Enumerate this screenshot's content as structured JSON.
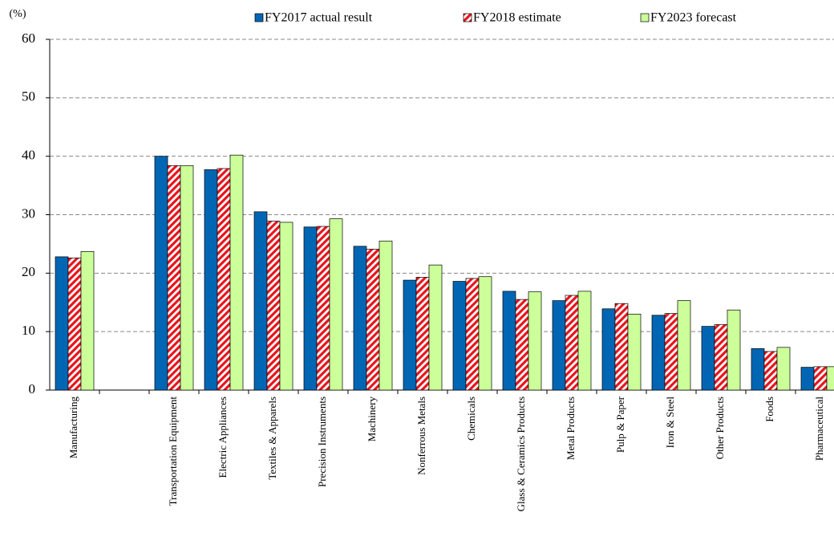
{
  "chart_data": {
    "type": "bar",
    "y_label": "(%)",
    "categories": [
      "Manufacturing",
      null,
      "Transportation Equipment",
      "Electric Appliances",
      "Textiles & Apparels",
      "Precision Instruments",
      "Machinery",
      "Nonferrous Metals",
      "Chemicals",
      "Glass & Ceramics Products",
      "Metal Products",
      "Pulp & Paper",
      "Iron & Steel",
      "Other Products",
      "Foods",
      "Pharmaceutical"
    ],
    "series": [
      {
        "name": "FY2017 actual result",
        "color": "#0066b3",
        "values": [
          22.8,
          null,
          40.0,
          37.7,
          30.5,
          27.9,
          24.6,
          18.8,
          18.6,
          16.9,
          15.3,
          13.9,
          12.8,
          10.9,
          7.1,
          3.9
        ]
      },
      {
        "name": "FY2018 estimate",
        "color": "#e8141c",
        "pattern": "hatch",
        "values": [
          22.6,
          null,
          38.4,
          37.9,
          28.9,
          28.0,
          24.1,
          19.3,
          19.1,
          15.5,
          16.2,
          14.8,
          13.1,
          11.2,
          6.6,
          4.0
        ]
      },
      {
        "name": "FY2023 forecast",
        "color": "#ccff99",
        "values": [
          23.7,
          null,
          38.4,
          40.2,
          28.7,
          29.3,
          25.5,
          21.4,
          19.4,
          16.8,
          16.9,
          13.0,
          15.3,
          13.7,
          7.3,
          4.0
        ]
      }
    ],
    "ylim": [
      0,
      60
    ],
    "yticks": [
      0,
      10,
      20,
      30,
      40,
      50,
      60
    ],
    "grid": true,
    "legend": "top"
  }
}
